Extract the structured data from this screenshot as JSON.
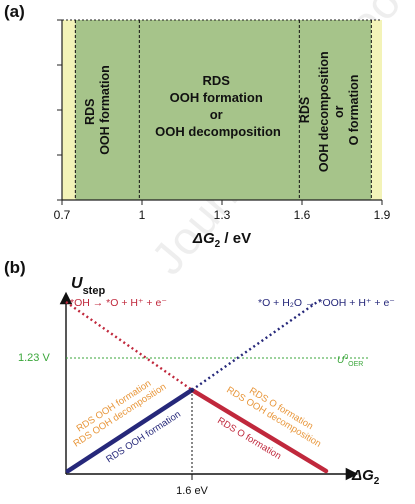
{
  "panel_a": {
    "label": "(a)",
    "x_ticks": [
      "0.7",
      "1",
      "1.3",
      "1.6",
      "1.9"
    ],
    "x_label_main": "ΔG",
    "x_label_sub": "2",
    "x_label_unit": " / eV",
    "regions": [
      {
        "from": 0.7,
        "to": 0.75,
        "fill": "#f3f3b8"
      },
      {
        "from": 0.75,
        "to": 1.86,
        "fill": "#a6c48a"
      },
      {
        "from": 1.86,
        "to": 1.9,
        "fill": "#f3f3b8"
      }
    ],
    "dividers": [
      0.75,
      0.99,
      1.59,
      1.86
    ],
    "region_text": {
      "left_1": "RDS",
      "left_2": "OOH formation",
      "mid_1": "RDS",
      "mid_2": "OOH formation",
      "mid_3": "or",
      "mid_4": "OOH decomposition",
      "right_a": "RDS",
      "right_b1": "OOH decomposition",
      "right_b2": "or",
      "right_b3": "O formation"
    }
  },
  "panel_b": {
    "label": "(b)",
    "y_label_main": "U",
    "y_label_sub": "step",
    "x_label_main": "ΔG",
    "x_label_sub": "2",
    "ref_value": "1.23 V",
    "ref_label_main": "U",
    "ref_label_sup": "0",
    "ref_label_sub": "OER",
    "cross_tick": "1.6 eV",
    "red_reaction": "*OH → *O + H⁺ + e⁻",
    "blue_reaction": "*O + H₂O → *OOH + H⁺ + e⁻",
    "left_labels": [
      "RDS OOH formation",
      "RDS OOH decomposition",
      "RDS OOH formation"
    ],
    "right_labels": [
      "RDS O formation",
      "RDS OOH decomposition",
      "RDS O formation"
    ],
    "watermark": "Journal Pre-proof",
    "colors": {
      "red": "#c0283c",
      "blue": "#26287a",
      "green": "#3aa63a",
      "orange": "#e8963a"
    }
  }
}
